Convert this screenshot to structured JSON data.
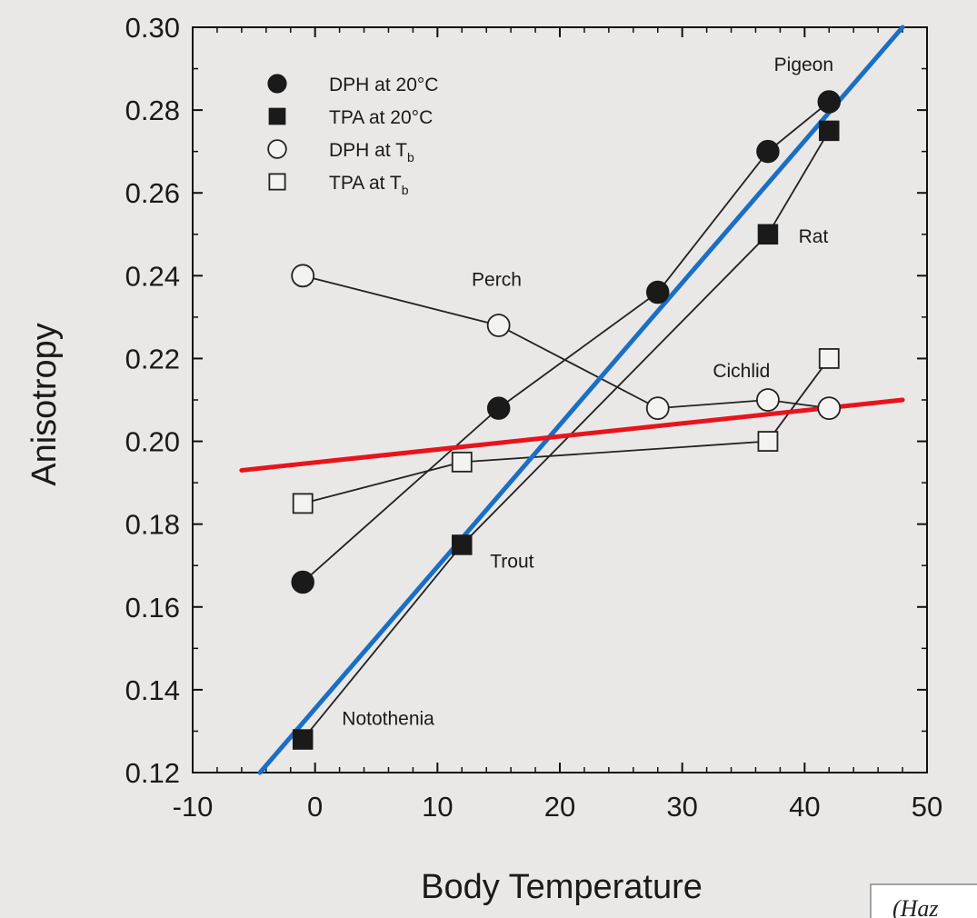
{
  "chart_data": {
    "type": "scatter",
    "title": "",
    "xlabel": "Body Temperature",
    "ylabel": "Anisotropy",
    "xlim": [
      -10,
      50
    ],
    "ylim": [
      0.12,
      0.3
    ],
    "xticks": [
      "-10",
      "0",
      "10",
      "20",
      "30",
      "40",
      "50"
    ],
    "yticks": [
      "0.12",
      "0.14",
      "0.16",
      "0.18",
      "0.20",
      "0.22",
      "0.24",
      "0.26",
      "0.28",
      "0.30"
    ],
    "legend_position": "top-left",
    "grid": false,
    "series": [
      {
        "name": "DPH at 20°C",
        "marker": "filled-circle",
        "x": [
          -1,
          15,
          28,
          37,
          42
        ],
        "y": [
          0.166,
          0.208,
          0.236,
          0.27,
          0.282
        ]
      },
      {
        "name": "TPA at 20°C",
        "marker": "filled-square",
        "x": [
          -1,
          12,
          37,
          42
        ],
        "y": [
          0.128,
          0.175,
          0.25,
          0.275
        ]
      },
      {
        "name": "DPH at T",
        "name_subscript": "b",
        "marker": "open-circle",
        "x": [
          -1,
          15,
          28,
          37,
          42
        ],
        "y": [
          0.24,
          0.228,
          0.208,
          0.21,
          0.208
        ]
      },
      {
        "name": "TPA at T",
        "name_subscript": "b",
        "marker": "open-square",
        "x": [
          -1,
          12,
          37,
          42
        ],
        "y": [
          0.185,
          0.195,
          0.2,
          0.22
        ]
      }
    ],
    "trend_lines": [
      {
        "color": "#1a6fc4",
        "x": [
          -4.5,
          48
        ],
        "y": [
          0.12,
          0.3
        ]
      },
      {
        "color": "#e8141b",
        "x": [
          -6,
          48
        ],
        "y": [
          0.193,
          0.21
        ]
      }
    ],
    "annotations": [
      {
        "text": "Pigeon",
        "x": 37.5,
        "y": 0.2895
      },
      {
        "text": "Rat",
        "x": 39.5,
        "y": 0.248
      },
      {
        "text": "Perch",
        "x": 12.8,
        "y": 0.2375
      },
      {
        "text": "Cichlid",
        "x": 32.5,
        "y": 0.2155
      },
      {
        "text": "Trout",
        "x": 14.3,
        "y": 0.1695
      },
      {
        "text": "Notothenia",
        "x": 2.2,
        "y": 0.1315
      }
    ],
    "credit": "(Haz"
  }
}
